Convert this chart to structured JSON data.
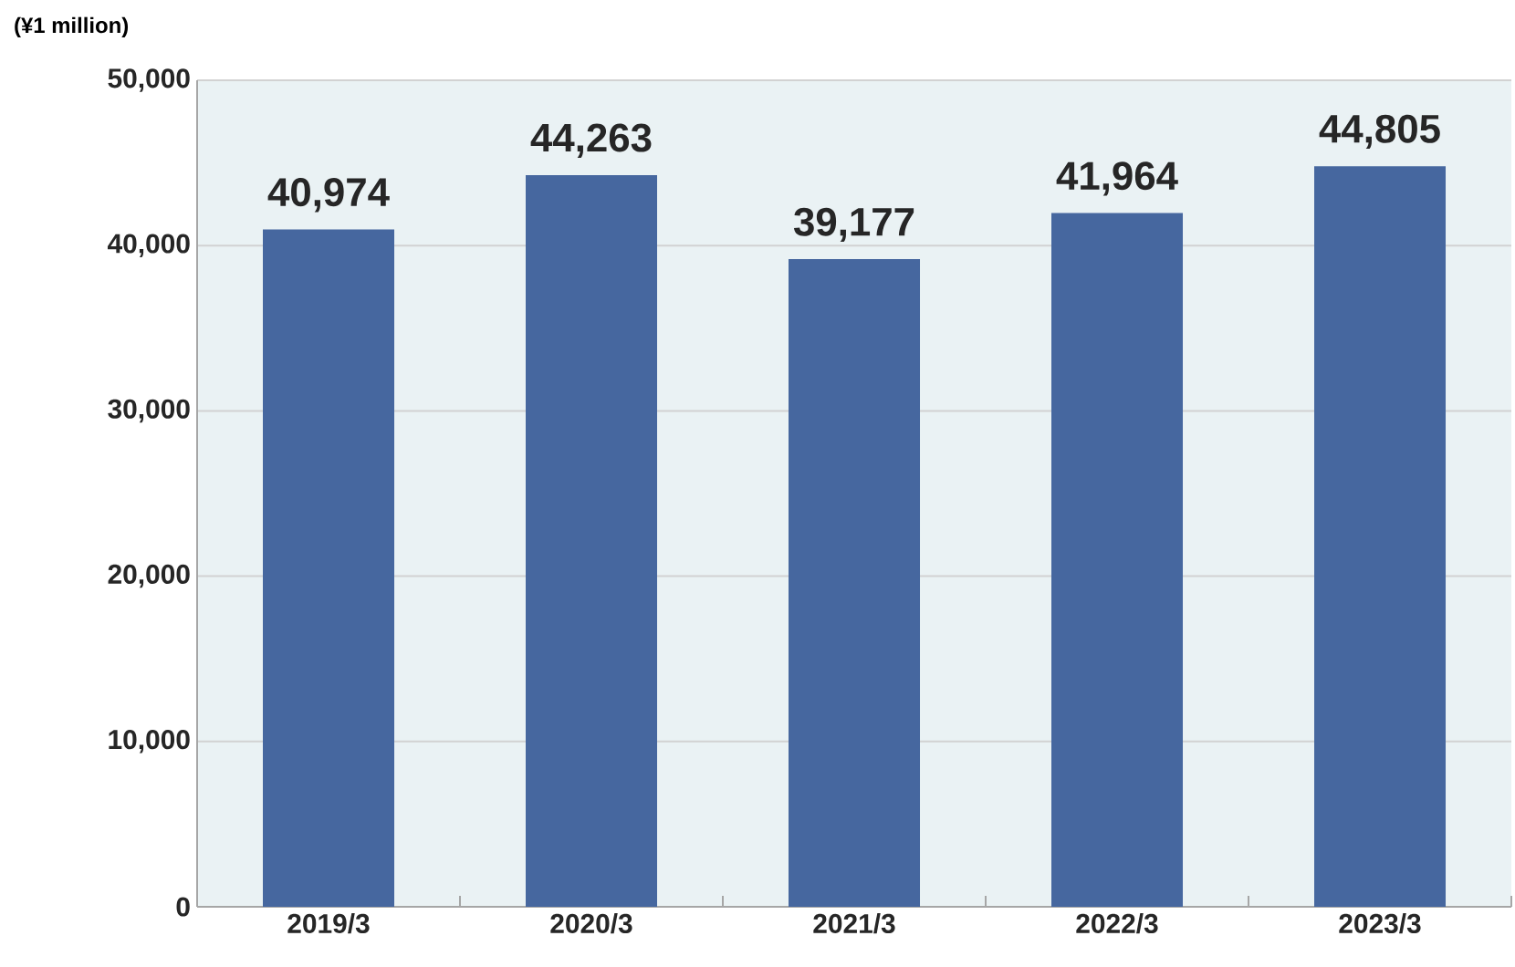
{
  "chart_data": {
    "type": "bar",
    "ylabel": "(¥1 million)",
    "categories": [
      "2019/3",
      "2020/3",
      "2021/3",
      "2022/3",
      "2023/3"
    ],
    "values": [
      40974,
      44263,
      39177,
      41964,
      44805
    ],
    "value_labels": [
      "40,974",
      "44,263",
      "39,177",
      "41,964",
      "44,805"
    ],
    "color": "#46679f",
    "ylim": [
      0,
      50000
    ],
    "yticks": [
      {
        "value": 0,
        "label": "0"
      },
      {
        "value": 10000,
        "label": "10,000"
      },
      {
        "value": 20000,
        "label": "20,000"
      },
      {
        "value": 30000,
        "label": "30,000"
      },
      {
        "value": 40000,
        "label": "40,000"
      },
      {
        "value": 50000,
        "label": "50,000"
      }
    ],
    "grid": "y"
  }
}
